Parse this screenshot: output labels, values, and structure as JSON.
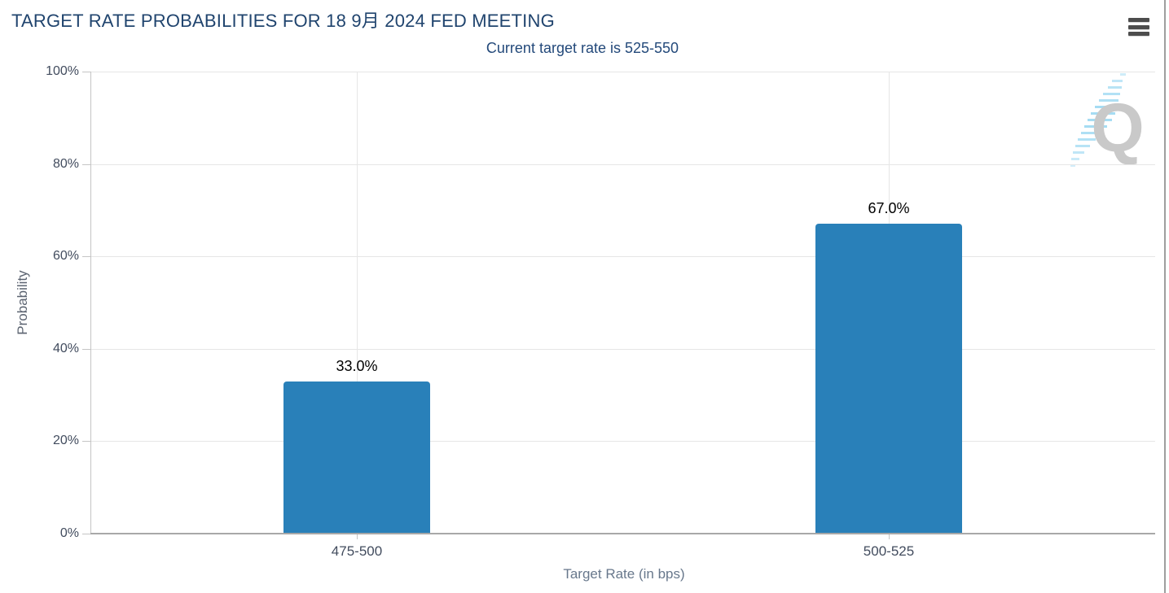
{
  "header": {
    "menu_icon": "hamburger-menu"
  },
  "chart_data": {
    "type": "bar",
    "title": "TARGET RATE PROBABILITIES FOR 18 9月 2024 FED MEETING",
    "subtitle": "Current target rate is 525-550",
    "categories": [
      "475-500",
      "500-525"
    ],
    "values": [
      33.0,
      67.0
    ],
    "data_labels": [
      "33.0%",
      "67.0%"
    ],
    "xlabel": "Target Rate (in bps)",
    "ylabel": "Probability",
    "ylim": [
      0,
      100
    ],
    "ytick_interval": 20,
    "ytick_labels": [
      "0%",
      "20%",
      "40%",
      "60%",
      "80%",
      "100%"
    ],
    "grid": true,
    "legend": "none",
    "bar_color": "#2980b9",
    "watermark_letter": "Q"
  },
  "colors": {
    "title": "#20446e",
    "subtitle": "#23497a",
    "bar": "#2980b9",
    "gridline": "#e6e6e6",
    "axis": "#a8a8a8",
    "tick_label": "#424c5e",
    "axis_title": "#68788c",
    "watermark_q": "#c9c9c9",
    "watermark_dash": "#a5dcf3"
  }
}
